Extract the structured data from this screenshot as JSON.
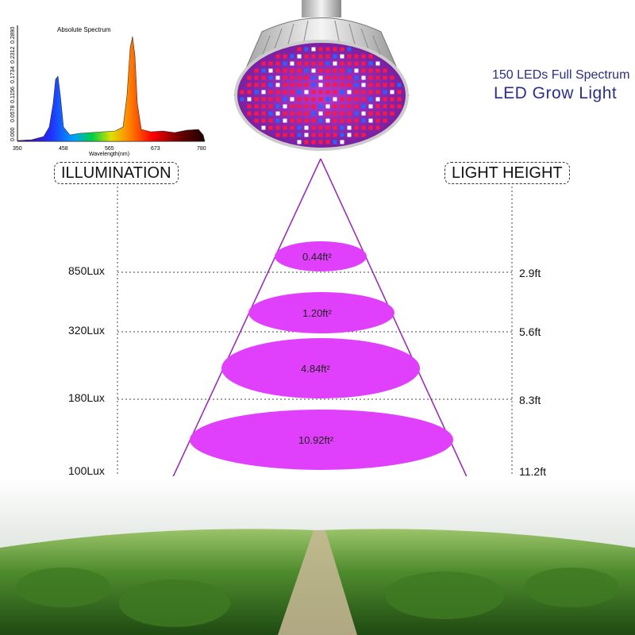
{
  "title": {
    "line1": "150 LEDs Full Spectrum",
    "line2": "LED Grow Light"
  },
  "spectrum": {
    "title": "Absolute Spectrum",
    "xlabel": "Wavelength(nm)",
    "x_ticks": [
      "350",
      "458",
      "565",
      "673",
      "780"
    ],
    "y_ticks": [
      "0.000",
      "0.0578",
      "0.1156",
      "0.1734",
      "0.2312",
      "0.2890"
    ]
  },
  "headers": {
    "left": "ILLUMINATION",
    "right": "LIGHT HEIGHT"
  },
  "levels": [
    {
      "lux": "850Lux",
      "height": "2.9ft",
      "area": "0.44ft²"
    },
    {
      "lux": "320Lux",
      "height": "5.6ft",
      "area": "1.20ft²"
    },
    {
      "lux": "180Lux",
      "height": "8.3ft",
      "area": "4.84ft²"
    },
    {
      "lux": "100Lux",
      "height": "11.2ft",
      "area": "10.92ft²"
    }
  ],
  "colors": {
    "beam": "#e040fb",
    "title": "#2b2f86"
  }
}
